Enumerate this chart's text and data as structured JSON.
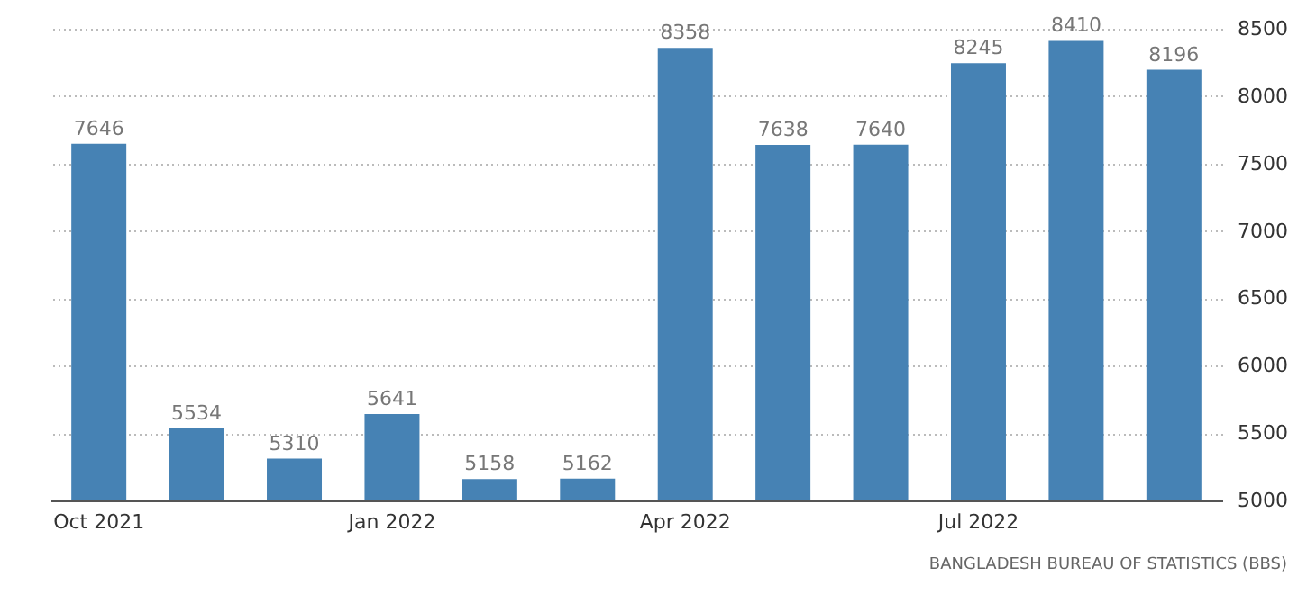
{
  "chart_data": {
    "type": "bar",
    "categories": [
      "Oct 2021",
      null,
      null,
      "Jan 2022",
      null,
      null,
      "Apr 2022",
      null,
      null,
      "Jul 2022",
      null,
      null
    ],
    "values": [
      7646,
      5534,
      5310,
      5641,
      5158,
      5162,
      8358,
      7638,
      7640,
      8245,
      8410,
      8196
    ],
    "color": "#4682b4",
    "ylim": [
      5000,
      8500
    ],
    "yticks": [
      5000,
      5500,
      6000,
      6500,
      7000,
      7500,
      8000,
      8500
    ],
    "grid": "y",
    "data_labels": true,
    "annotations": [
      "BANGLADESH BUREAU OF STATISTICS (BBS)"
    ]
  }
}
